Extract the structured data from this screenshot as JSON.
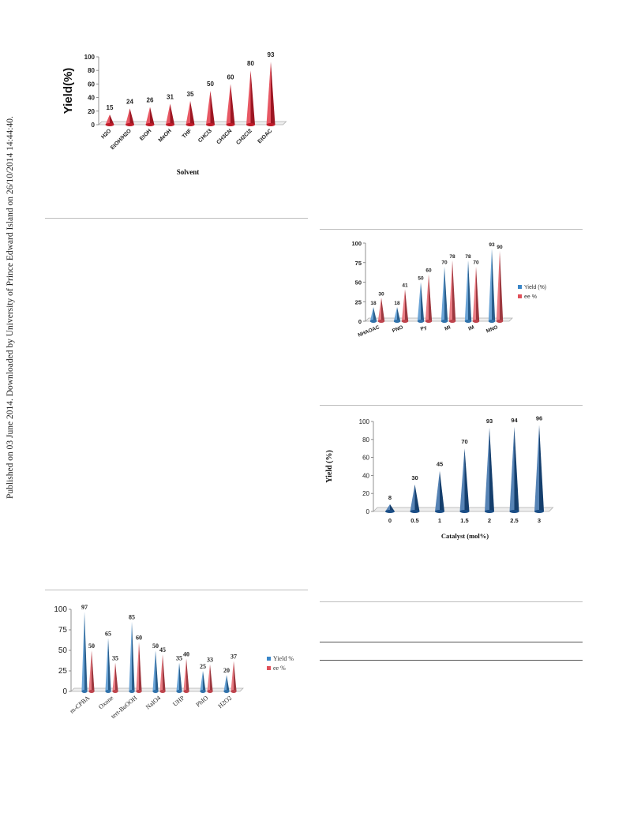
{
  "sidebar": {
    "text": "Published on 03 June 2014. Downloaded by University of Prince Edward Island on 26/10/2014 14:44:40."
  },
  "chart_data": [
    {
      "type": "bar",
      "categories": [
        "H2O",
        "EtOH/H2O",
        "EtOH",
        "MeOH",
        "THF",
        "CHCl3",
        "CH3CN",
        "CH2Cl2",
        "EtOAC"
      ],
      "values": [
        15,
        24,
        26,
        31,
        35,
        50,
        60,
        80,
        93
      ],
      "xlabel": "Solvent",
      "ylabel": "Yield(%)",
      "ylim": [
        0,
        100
      ],
      "yticks": [
        "0",
        "20",
        "40",
        "60",
        "80",
        "100"
      ],
      "color": "#e02030"
    },
    {
      "type": "bar",
      "categories": [
        "NHAOAC",
        "PNO",
        "Py",
        "MI",
        "IM",
        "MNO"
      ],
      "series": [
        {
          "name": "Yield (%)",
          "values": [
            18,
            18,
            50,
            70,
            78,
            93
          ],
          "color": "#3a86c8"
        },
        {
          "name": "ee %",
          "values": [
            30,
            41,
            60,
            78,
            70,
            90
          ],
          "color": "#e0505a"
        }
      ],
      "ylim": [
        0,
        100
      ],
      "yticks": [
        "0",
        "25",
        "50",
        "75",
        "100"
      ],
      "legend": "right"
    },
    {
      "type": "bar",
      "categories": [
        "0",
        "0.5",
        "1",
        "1.5",
        "2",
        "2.5",
        "3"
      ],
      "values": [
        8,
        30,
        45,
        70,
        93,
        94,
        96
      ],
      "xlabel": "Catalyst (mol%)",
      "ylabel": "Yield (%)",
      "ylim": [
        0,
        100
      ],
      "yticks": [
        "0",
        "20",
        "40",
        "60",
        "80",
        "100"
      ],
      "color": "#1e5a9c"
    },
    {
      "type": "bar",
      "categories": [
        "m-CPBA",
        "Oxone",
        "tert-BuOOH",
        "NaIO4",
        "UHP",
        "PhIO",
        "H2O2"
      ],
      "series": [
        {
          "name": "Yield %",
          "values": [
            97,
            65,
            85,
            50,
            35,
            25,
            20
          ],
          "color": "#3a86c8"
        },
        {
          "name": "ee %",
          "values": [
            50,
            35,
            60,
            45,
            40,
            33,
            37
          ],
          "color": "#e0505a"
        }
      ],
      "ylim": [
        0,
        100
      ],
      "yticks": [
        "0",
        "25",
        "50",
        "75",
        "100"
      ],
      "legend": "right"
    }
  ]
}
